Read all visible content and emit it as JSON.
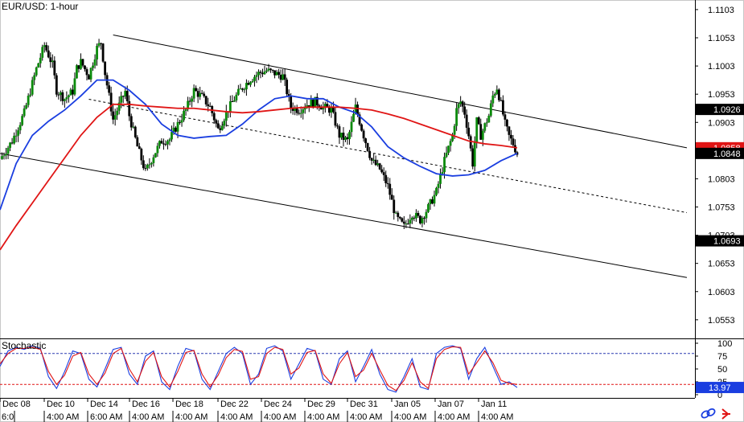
{
  "chart_title": "EUR/USD: 1-hour",
  "colors": {
    "bull_body": "#0a8a0a",
    "bear_body": "#000000",
    "ma_fast": "#1a3ee0",
    "ma_slow": "#e01515",
    "stoch_k": "#1a3ee0",
    "stoch_d": "#e01515",
    "price_tag_black": "#000000",
    "price_tag_red": "#e01515",
    "stoch_tag_blue": "#1a3ee0",
    "stoch_upper_line": "#2a3ab0",
    "stoch_lower_line": "#e01515",
    "channel_line": "#000000",
    "icons": "#1a3ee0"
  },
  "chart_data": [
    {
      "type": "candlestick",
      "title": "EUR/USD: 1-hour",
      "ylim": [
        1.052,
        1.112
      ],
      "y_ticks": [
        "1.1103",
        "1.1053",
        "1.1003",
        "1.0953",
        "1.0903",
        "1.0853",
        "1.0803",
        "1.0753",
        "1.0703",
        "1.0653",
        "1.0603",
        "1.0553"
      ],
      "grid": false,
      "price_tags": [
        {
          "value": "1.0926",
          "style": "black"
        },
        {
          "value": "1.0858",
          "style": "red"
        },
        {
          "value": "1.0848",
          "style": "black"
        },
        {
          "value": "1.0693",
          "style": "black"
        }
      ],
      "close_path": [
        [
          0,
          1.0838
        ],
        [
          3,
          1.087
        ],
        [
          6,
          1.092
        ],
        [
          9,
          1.0998
        ],
        [
          11,
          1.104
        ],
        [
          13,
          1.1005
        ],
        [
          14,
          1.096
        ],
        [
          16,
          1.0945
        ],
        [
          18,
          1.0958
        ],
        [
          19,
          1.0999
        ],
        [
          20,
          1.101
        ],
        [
          22,
          1.0985
        ],
        [
          24,
          1.1035
        ],
        [
          25,
          1.1045
        ],
        [
          26,
          1.099
        ],
        [
          28,
          1.0908
        ],
        [
          30,
          1.0942
        ],
        [
          31,
          1.0958
        ],
        [
          32,
          1.0915
        ],
        [
          34,
          1.086
        ],
        [
          36,
          1.0815
        ],
        [
          38,
          1.0845
        ],
        [
          40,
          1.087
        ],
        [
          42,
          1.0873
        ],
        [
          44,
          1.09
        ],
        [
          46,
          1.0925
        ],
        [
          48,
          1.096
        ],
        [
          50,
          1.0948
        ],
        [
          52,
          1.093
        ],
        [
          54,
          1.089
        ],
        [
          56,
          1.092
        ],
        [
          58,
          1.0945
        ],
        [
          60,
          1.0965
        ],
        [
          62,
          1.098
        ],
        [
          64,
          1.099
        ],
        [
          66,
          1.0995
        ],
        [
          68,
          1.099
        ],
        [
          70,
          1.0985
        ],
        [
          72,
          1.093
        ],
        [
          74,
          1.0925
        ],
        [
          76,
          1.0935
        ],
        [
          78,
          1.094
        ],
        [
          80,
          1.093
        ],
        [
          82,
          1.0925
        ],
        [
          84,
          1.088
        ],
        [
          86,
          1.087
        ],
        [
          88,
          1.093
        ],
        [
          90,
          1.088
        ],
        [
          92,
          1.0835
        ],
        [
          94,
          1.082
        ],
        [
          96,
          1.079
        ],
        [
          98,
          1.0735
        ],
        [
          100,
          1.0718
        ],
        [
          102,
          1.0742
        ],
        [
          104,
          1.073
        ],
        [
          106,
          1.0752
        ],
        [
          108,
          1.078
        ],
        [
          110,
          1.0835
        ],
        [
          112,
          1.088
        ],
        [
          113,
          1.0925
        ],
        [
          114,
          1.094
        ],
        [
          115,
          1.092
        ],
        [
          116,
          1.088
        ],
        [
          117,
          1.083
        ],
        [
          118,
          1.0905
        ],
        [
          119,
          1.088
        ],
        [
          121,
          1.0915
        ],
        [
          122,
          1.095
        ],
        [
          123,
          1.0965
        ],
        [
          124,
          1.0935
        ],
        [
          125,
          1.09
        ],
        [
          126,
          1.0878
        ],
        [
          127,
          1.0865
        ],
        [
          128,
          1.0848
        ]
      ],
      "series": [
        {
          "name": "",
          "kind": "moving-average-fast",
          "x": [
            0,
            4,
            8,
            12,
            16,
            20,
            24,
            28,
            32,
            36,
            40,
            44,
            48,
            52,
            56,
            60,
            64,
            68,
            72,
            76,
            80,
            84,
            88,
            92,
            96,
            100,
            104,
            108,
            112,
            116,
            120,
            124,
            128
          ],
          "values": [
            1.0748,
            1.083,
            1.088,
            1.0905,
            1.0925,
            1.095,
            1.0978,
            1.0978,
            1.096,
            1.0935,
            1.09,
            1.088,
            1.0875,
            1.0878,
            1.088,
            1.09,
            1.0925,
            1.0945,
            1.095,
            1.0945,
            1.0945,
            1.093,
            1.092,
            1.0895,
            1.086,
            1.084,
            1.0825,
            1.0812,
            1.0808,
            1.081,
            1.0818,
            1.0835,
            1.0848
          ]
        },
        {
          "name": "",
          "kind": "moving-average-slow",
          "x": [
            0,
            4,
            8,
            12,
            16,
            20,
            24,
            28,
            32,
            36,
            40,
            44,
            48,
            52,
            56,
            60,
            64,
            68,
            72,
            76,
            80,
            84,
            88,
            92,
            96,
            100,
            104,
            108,
            112,
            116,
            120,
            124,
            128
          ],
          "values": [
            1.0677,
            1.072,
            1.076,
            1.08,
            1.084,
            1.088,
            1.0912,
            1.0935,
            1.0935,
            1.0932,
            1.093,
            1.0928,
            1.0928,
            1.0925,
            1.0922,
            1.092,
            1.0922,
            1.0925,
            1.0928,
            1.093,
            1.093,
            1.093,
            1.0928,
            1.0925,
            1.0918,
            1.091,
            1.09,
            1.089,
            1.088,
            1.087,
            1.0865,
            1.0862,
            1.0858
          ]
        }
      ],
      "channel_lines": [
        {
          "x": [
            28,
            170
          ],
          "values": [
            1.1058,
            1.0858
          ],
          "style": "solid"
        },
        {
          "x": [
            0,
            170
          ],
          "values": [
            1.0848,
            1.0628
          ],
          "style": "solid"
        },
        {
          "x": [
            22,
            170
          ],
          "values": [
            1.0944,
            1.0743
          ],
          "style": "dashed"
        }
      ],
      "x_range": [
        0,
        172
      ]
    },
    {
      "type": "line",
      "title": "Stochastic",
      "ylim": [
        0,
        100
      ],
      "y_ticks": [
        "100",
        "75",
        "50",
        "25",
        "0"
      ],
      "levels": [
        80,
        20
      ],
      "last_value": "13.97",
      "x": [
        0,
        2,
        4,
        6,
        8,
        10,
        12,
        14,
        16,
        18,
        20,
        22,
        24,
        26,
        28,
        30,
        32,
        34,
        36,
        38,
        40,
        42,
        44,
        46,
        48,
        50,
        52,
        54,
        56,
        58,
        60,
        62,
        64,
        66,
        68,
        70,
        72,
        74,
        76,
        78,
        80,
        82,
        84,
        86,
        88,
        90,
        92,
        94,
        96,
        98,
        100,
        102,
        104,
        106,
        108,
        110,
        112,
        114,
        116,
        118,
        120,
        122,
        124,
        126,
        128
      ],
      "series": [
        {
          "name": "",
          "values": [
            55,
            85,
            92,
            88,
            95,
            90,
            35,
            12,
            45,
            85,
            80,
            30,
            15,
            50,
            88,
            92,
            40,
            20,
            75,
            85,
            25,
            10,
            55,
            90,
            85,
            30,
            10,
            45,
            80,
            92,
            80,
            20,
            40,
            90,
            95,
            85,
            30,
            60,
            90,
            85,
            30,
            20,
            70,
            85,
            25,
            55,
            88,
            40,
            10,
            5,
            35,
            70,
            15,
            10,
            80,
            92,
            95,
            90,
            30,
            70,
            92,
            55,
            20,
            25,
            14
          ]
        },
        {
          "name": "",
          "values": [
            60,
            80,
            90,
            90,
            92,
            88,
            45,
            20,
            38,
            75,
            82,
            40,
            20,
            42,
            80,
            90,
            50,
            25,
            65,
            82,
            35,
            15,
            45,
            82,
            86,
            40,
            15,
            38,
            72,
            88,
            84,
            30,
            35,
            80,
            92,
            88,
            40,
            52,
            82,
            86,
            40,
            22,
            60,
            82,
            35,
            48,
            80,
            48,
            18,
            8,
            28,
            62,
            25,
            12,
            70,
            88,
            93,
            92,
            40,
            62,
            85,
            62,
            28,
            22,
            20
          ]
        }
      ]
    }
  ],
  "x_axis_top": [
    "Dec 08",
    "Dec 10",
    "Dec 14",
    "Dec 16",
    "Dec 18",
    "Dec 22",
    "Dec 24",
    "Dec 29",
    "Dec 31",
    "Jan 05",
    "Jan 07",
    "Jan 11"
  ],
  "x_axis_bottom": [
    "6:0",
    "4:00 AM",
    "6:00 AM",
    "4:00 AM",
    "4:00 AM",
    "4:00 AM",
    "4:00 AM",
    "4:00 AM",
    "4:00 AM",
    "4:00 AM",
    "4:00 AM",
    "4:00 AM"
  ],
  "footer_icons": [
    "link-icon",
    "arrow-icon"
  ]
}
